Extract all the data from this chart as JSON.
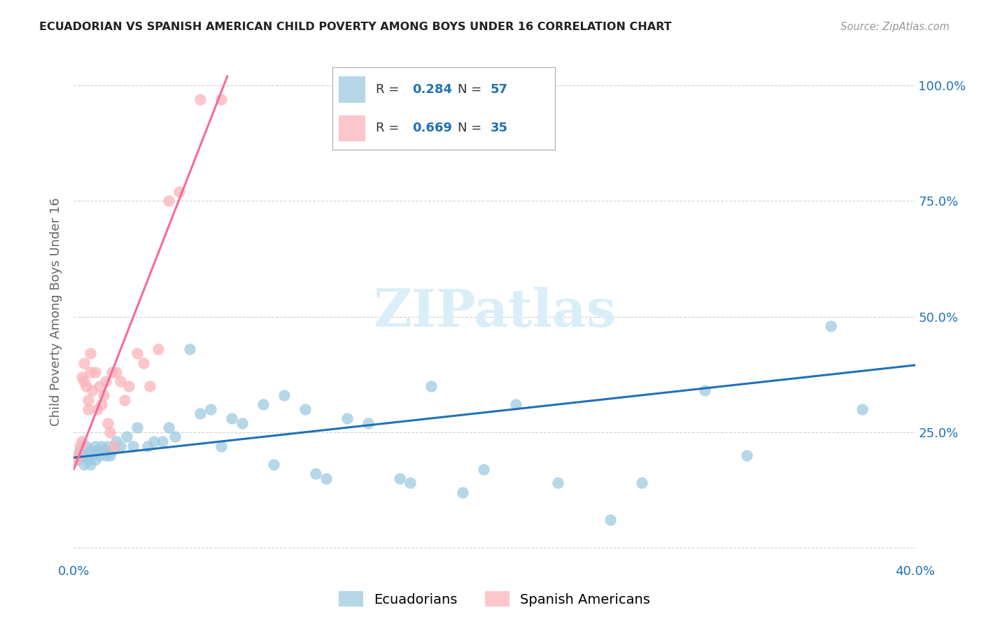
{
  "title": "ECUADORIAN VS SPANISH AMERICAN CHILD POVERTY AMONG BOYS UNDER 16 CORRELATION CHART",
  "source": "Source: ZipAtlas.com",
  "ylabel": "Child Poverty Among Boys Under 16",
  "xlim": [
    0.0,
    0.4
  ],
  "ylim": [
    -0.03,
    1.05
  ],
  "blue_R": 0.284,
  "blue_N": 57,
  "pink_R": 0.669,
  "pink_N": 35,
  "blue_color": "#9ecae1",
  "pink_color": "#fbb4b9",
  "blue_line_color": "#2171b5",
  "pink_line_color": "#f768a1",
  "legend_color": "#2171b5",
  "watermark_text": "ZIPatlas",
  "watermark_color": "#daeef8",
  "blue_x": [
    0.002,
    0.003,
    0.004,
    0.005,
    0.006,
    0.006,
    0.007,
    0.008,
    0.008,
    0.009,
    0.01,
    0.01,
    0.011,
    0.012,
    0.013,
    0.014,
    0.015,
    0.016,
    0.017,
    0.018,
    0.02,
    0.022,
    0.025,
    0.028,
    0.03,
    0.035,
    0.038,
    0.042,
    0.045,
    0.048,
    0.055,
    0.06,
    0.065,
    0.07,
    0.075,
    0.08,
    0.09,
    0.095,
    0.1,
    0.11,
    0.115,
    0.12,
    0.13,
    0.14,
    0.155,
    0.16,
    0.17,
    0.185,
    0.195,
    0.21,
    0.23,
    0.255,
    0.27,
    0.3,
    0.32,
    0.36,
    0.375
  ],
  "blue_y": [
    0.19,
    0.21,
    0.2,
    0.18,
    0.2,
    0.22,
    0.19,
    0.21,
    0.18,
    0.2,
    0.22,
    0.19,
    0.21,
    0.2,
    0.22,
    0.21,
    0.2,
    0.22,
    0.2,
    0.21,
    0.23,
    0.22,
    0.24,
    0.22,
    0.26,
    0.22,
    0.23,
    0.23,
    0.26,
    0.24,
    0.43,
    0.29,
    0.3,
    0.22,
    0.28,
    0.27,
    0.31,
    0.18,
    0.33,
    0.3,
    0.16,
    0.15,
    0.28,
    0.27,
    0.15,
    0.14,
    0.35,
    0.12,
    0.17,
    0.31,
    0.14,
    0.06,
    0.14,
    0.34,
    0.2,
    0.48,
    0.3
  ],
  "pink_x": [
    0.001,
    0.002,
    0.003,
    0.004,
    0.004,
    0.005,
    0.005,
    0.006,
    0.007,
    0.007,
    0.008,
    0.008,
    0.009,
    0.01,
    0.011,
    0.012,
    0.013,
    0.014,
    0.015,
    0.016,
    0.017,
    0.018,
    0.019,
    0.02,
    0.022,
    0.024,
    0.026,
    0.03,
    0.033,
    0.036,
    0.04,
    0.045,
    0.05,
    0.06,
    0.07
  ],
  "pink_y": [
    0.19,
    0.2,
    0.22,
    0.23,
    0.37,
    0.36,
    0.4,
    0.35,
    0.3,
    0.32,
    0.38,
    0.42,
    0.34,
    0.38,
    0.3,
    0.35,
    0.31,
    0.33,
    0.36,
    0.27,
    0.25,
    0.38,
    0.22,
    0.38,
    0.36,
    0.32,
    0.35,
    0.42,
    0.4,
    0.35,
    0.43,
    0.75,
    0.77,
    0.97,
    0.97
  ],
  "blue_line_x": [
    0.0,
    0.4
  ],
  "blue_line_y": [
    0.195,
    0.395
  ],
  "pink_line_x": [
    0.0,
    0.073
  ],
  "pink_line_y": [
    0.17,
    1.02
  ]
}
